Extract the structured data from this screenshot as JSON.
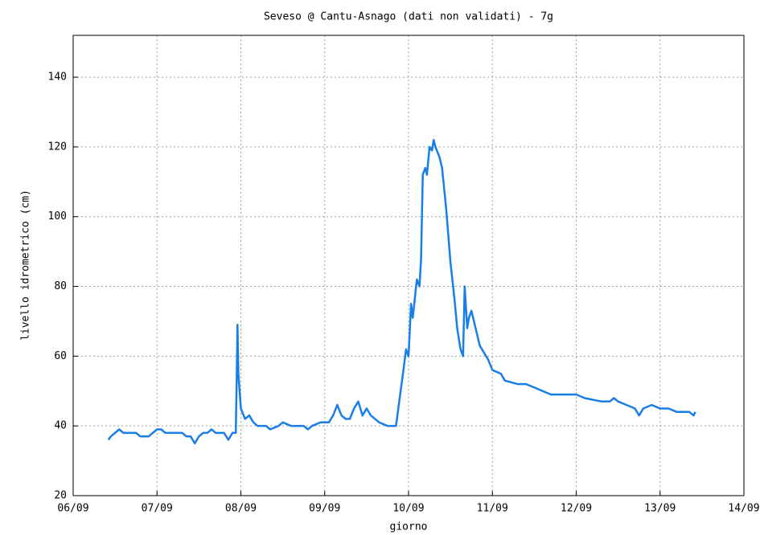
{
  "chart_data": {
    "type": "line",
    "title": "Seveso @ Cantu-Asnago (dati non validati) - 7g",
    "x_label": "giorno",
    "y_label": "livello idrometrico (cm)",
    "grid": true,
    "xlim": [
      6,
      14
    ],
    "xticks": [
      {
        "value": 6,
        "label": "06/09"
      },
      {
        "value": 7,
        "label": "07/09"
      },
      {
        "value": 8,
        "label": "08/09"
      },
      {
        "value": 9,
        "label": "09/09"
      },
      {
        "value": 10,
        "label": "10/09"
      },
      {
        "value": 11,
        "label": "11/09"
      },
      {
        "value": 12,
        "label": "12/09"
      },
      {
        "value": 13,
        "label": "13/09"
      },
      {
        "value": 14,
        "label": "14/09"
      }
    ],
    "ylim": [
      20,
      152
    ],
    "yticks": [
      20,
      40,
      60,
      80,
      100,
      120,
      140
    ],
    "series": [
      {
        "color": "#1a7ee8",
        "x": [
          6.42,
          6.45,
          6.5,
          6.55,
          6.6,
          6.75,
          6.8,
          6.9,
          6.95,
          7.0,
          7.05,
          7.1,
          7.3,
          7.35,
          7.4,
          7.45,
          7.5,
          7.55,
          7.6,
          7.65,
          7.7,
          7.8,
          7.85,
          7.9,
          7.94,
          7.95,
          7.96,
          7.97,
          8.0,
          8.05,
          8.1,
          8.15,
          8.2,
          8.3,
          8.35,
          8.45,
          8.5,
          8.6,
          8.75,
          8.8,
          8.85,
          8.95,
          9.05,
          9.1,
          9.15,
          9.2,
          9.25,
          9.3,
          9.35,
          9.4,
          9.45,
          9.5,
          9.55,
          9.6,
          9.65,
          9.75,
          9.85,
          9.95,
          9.97,
          10.0,
          10.03,
          10.05,
          10.1,
          10.13,
          10.15,
          10.17,
          10.2,
          10.22,
          10.25,
          10.28,
          10.3,
          10.32,
          10.37,
          10.4,
          10.45,
          10.5,
          10.55,
          10.58,
          10.62,
          10.65,
          10.67,
          10.7,
          10.72,
          10.75,
          10.8,
          10.85,
          10.9,
          10.95,
          11.0,
          11.1,
          11.15,
          11.3,
          11.4,
          11.5,
          11.6,
          11.7,
          11.8,
          12.0,
          12.1,
          12.3,
          12.4,
          12.45,
          12.5,
          12.6,
          12.7,
          12.75,
          12.8,
          12.9,
          13.0,
          13.1,
          13.2,
          13.35,
          13.4,
          13.42
        ],
        "values": [
          36,
          37,
          38,
          39,
          38,
          38,
          37,
          37,
          38,
          39,
          39,
          38,
          38,
          37,
          37,
          35,
          37,
          38,
          38,
          39,
          38,
          38,
          36,
          38,
          38,
          53,
          69,
          55,
          45,
          42,
          43,
          41,
          40,
          40,
          39,
          40,
          41,
          40,
          40,
          39,
          40,
          41,
          41,
          43,
          46,
          43,
          42,
          42,
          45,
          47,
          43,
          45,
          43,
          42,
          41,
          40,
          40,
          58,
          62,
          60,
          75,
          71,
          82,
          80,
          88,
          112,
          114,
          112,
          120,
          119,
          122,
          120,
          117,
          114,
          102,
          87,
          76,
          68,
          62,
          60,
          80,
          68,
          71,
          73,
          68,
          63,
          61,
          59,
          56,
          55,
          53,
          52,
          52,
          51,
          50,
          49,
          49,
          49,
          48,
          47,
          47,
          48,
          47,
          46,
          45,
          43,
          45,
          46,
          45,
          45,
          44,
          44,
          43,
          44
        ]
      }
    ]
  }
}
